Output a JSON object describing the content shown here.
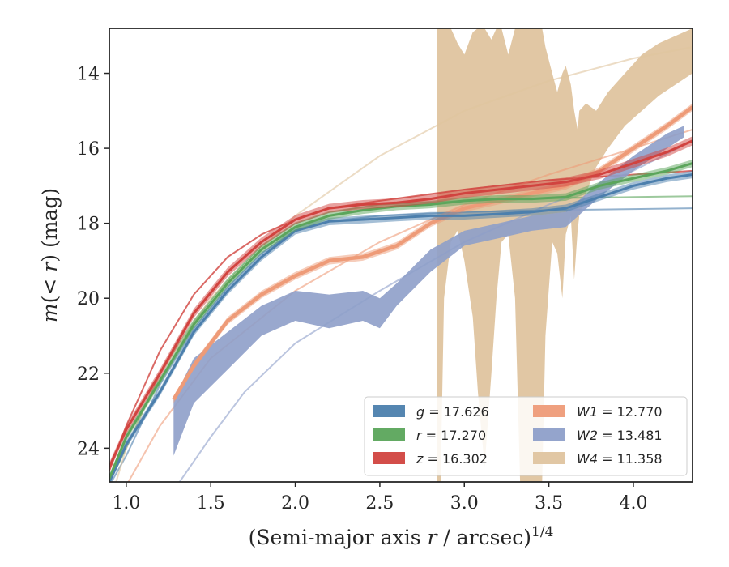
{
  "chart_data": {
    "type": "line",
    "title": "",
    "xlabel": "(Semi-major axis r / arcsec)",
    "xlabel_parts": {
      "pre": "(Semi-major axis ",
      "var": "r",
      "post": " / arcsec)",
      "sup": "1/4"
    },
    "ylabel_parts": {
      "var1": "m",
      "mid": "(< ",
      "var2": "r",
      "post": ") (mag)"
    },
    "xlim": [
      0.9,
      4.35
    ],
    "ylim": [
      24.9,
      12.8
    ],
    "y_inverted": true,
    "grid": false,
    "legend_position": "lower-right",
    "legend_columns": 2,
    "x_ticks": [
      1.0,
      1.5,
      2.0,
      2.5,
      3.0,
      3.5,
      4.0
    ],
    "x_tick_labels": [
      "1.0",
      "1.5",
      "2.0",
      "2.5",
      "3.0",
      "3.5",
      "4.0"
    ],
    "y_ticks": [
      14,
      16,
      18,
      20,
      22,
      24
    ],
    "y_tick_labels": [
      "14",
      "16",
      "18",
      "20",
      "22",
      "24"
    ],
    "series": [
      {
        "key": "g",
        "legend_var": "g",
        "legend_value": "17.626",
        "color": "#4c7fad",
        "data": [
          [
            0.9,
            24.9
          ],
          [
            1.0,
            23.9
          ],
          [
            1.2,
            22.5
          ],
          [
            1.4,
            20.9
          ],
          [
            1.6,
            19.8
          ],
          [
            1.8,
            18.9
          ],
          [
            2.0,
            18.2
          ],
          [
            2.2,
            17.95
          ],
          [
            2.4,
            17.9
          ],
          [
            2.6,
            17.85
          ],
          [
            2.8,
            17.8
          ],
          [
            3.0,
            17.8
          ],
          [
            3.2,
            17.75
          ],
          [
            3.4,
            17.7
          ],
          [
            3.6,
            17.6
          ],
          [
            3.8,
            17.3
          ],
          [
            4.0,
            17.0
          ],
          [
            4.2,
            16.8
          ],
          [
            4.35,
            16.7
          ]
        ],
        "band": 0.1,
        "model": [
          [
            0.9,
            25.0
          ],
          [
            1.0,
            24.2
          ],
          [
            1.2,
            22.3
          ],
          [
            1.4,
            20.8
          ],
          [
            1.6,
            19.7
          ],
          [
            1.8,
            18.8
          ],
          [
            2.0,
            18.2
          ],
          [
            2.2,
            17.95
          ],
          [
            2.5,
            17.8
          ],
          [
            3.0,
            17.7
          ],
          [
            3.5,
            17.65
          ],
          [
            4.0,
            17.62
          ],
          [
            4.35,
            17.6
          ]
        ]
      },
      {
        "key": "r",
        "legend_var": "r",
        "legend_value": "17.270",
        "color": "#5ba55b",
        "data": [
          [
            0.9,
            24.8
          ],
          [
            1.0,
            23.7
          ],
          [
            1.2,
            22.2
          ],
          [
            1.4,
            20.7
          ],
          [
            1.6,
            19.6
          ],
          [
            1.8,
            18.7
          ],
          [
            2.0,
            18.1
          ],
          [
            2.2,
            17.8
          ],
          [
            2.4,
            17.65
          ],
          [
            2.6,
            17.55
          ],
          [
            2.8,
            17.5
          ],
          [
            3.0,
            17.4
          ],
          [
            3.2,
            17.35
          ],
          [
            3.4,
            17.35
          ],
          [
            3.6,
            17.3
          ],
          [
            3.8,
            17.0
          ],
          [
            4.0,
            16.8
          ],
          [
            4.2,
            16.6
          ],
          [
            4.35,
            16.4
          ]
        ],
        "band": 0.1,
        "model": [
          [
            0.9,
            24.9
          ],
          [
            1.0,
            24.0
          ],
          [
            1.2,
            22.0
          ],
          [
            1.4,
            20.6
          ],
          [
            1.6,
            19.5
          ],
          [
            1.8,
            18.6
          ],
          [
            2.0,
            18.0
          ],
          [
            2.2,
            17.7
          ],
          [
            2.5,
            17.5
          ],
          [
            3.0,
            17.4
          ],
          [
            3.5,
            17.33
          ],
          [
            4.0,
            17.3
          ],
          [
            4.35,
            17.28
          ]
        ]
      },
      {
        "key": "z",
        "legend_var": "z",
        "legend_value": "16.302",
        "color": "#d1433f",
        "data": [
          [
            0.9,
            24.5
          ],
          [
            1.0,
            23.5
          ],
          [
            1.2,
            22.0
          ],
          [
            1.4,
            20.4
          ],
          [
            1.6,
            19.3
          ],
          [
            1.8,
            18.5
          ],
          [
            2.0,
            17.9
          ],
          [
            2.2,
            17.6
          ],
          [
            2.4,
            17.5
          ],
          [
            2.6,
            17.45
          ],
          [
            2.8,
            17.35
          ],
          [
            3.0,
            17.2
          ],
          [
            3.2,
            17.1
          ],
          [
            3.4,
            17.0
          ],
          [
            3.6,
            16.9
          ],
          [
            3.8,
            16.7
          ],
          [
            4.0,
            16.4
          ],
          [
            4.2,
            16.1
          ],
          [
            4.35,
            15.8
          ]
        ],
        "band": 0.12,
        "model": [
          [
            0.9,
            24.6
          ],
          [
            1.0,
            23.4
          ],
          [
            1.2,
            21.4
          ],
          [
            1.4,
            19.9
          ],
          [
            1.6,
            18.9
          ],
          [
            1.8,
            18.3
          ],
          [
            2.0,
            17.9
          ],
          [
            2.2,
            17.6
          ],
          [
            2.5,
            17.4
          ],
          [
            3.0,
            17.1
          ],
          [
            3.5,
            16.85
          ],
          [
            4.0,
            16.7
          ],
          [
            4.35,
            16.6
          ]
        ]
      },
      {
        "key": "W1",
        "legend_var": "W1",
        "legend_value": "12.770",
        "color": "#ee9b78",
        "data": [
          [
            1.28,
            22.7
          ],
          [
            1.4,
            21.8
          ],
          [
            1.6,
            20.6
          ],
          [
            1.8,
            19.9
          ],
          [
            2.0,
            19.4
          ],
          [
            2.2,
            19.0
          ],
          [
            2.4,
            18.9
          ],
          [
            2.6,
            18.6
          ],
          [
            2.8,
            18.0
          ],
          [
            3.0,
            17.6
          ],
          [
            3.2,
            17.4
          ],
          [
            3.4,
            17.2
          ],
          [
            3.6,
            17.0
          ],
          [
            3.8,
            16.6
          ],
          [
            4.0,
            16.0
          ],
          [
            4.2,
            15.4
          ],
          [
            4.35,
            14.9
          ]
        ],
        "band": 0.1,
        "model": [
          [
            0.9,
            26.5
          ],
          [
            1.0,
            25.0
          ],
          [
            1.2,
            23.4
          ],
          [
            1.5,
            21.6
          ],
          [
            2.0,
            19.8
          ],
          [
            2.5,
            18.5
          ],
          [
            3.0,
            17.5
          ],
          [
            3.5,
            16.7
          ],
          [
            4.0,
            16.0
          ],
          [
            4.35,
            15.5
          ]
        ]
      },
      {
        "key": "W2",
        "legend_var": "W2",
        "legend_value": "13.481",
        "color": "#8e9fc9",
        "data": [
          [
            1.28,
            23.3
          ],
          [
            1.4,
            22.1
          ],
          [
            1.6,
            21.4
          ],
          [
            1.8,
            20.6
          ],
          [
            2.0,
            20.2
          ],
          [
            2.2,
            20.3
          ],
          [
            2.4,
            20.2
          ],
          [
            2.5,
            20.4
          ],
          [
            2.6,
            19.9
          ],
          [
            2.8,
            19.0
          ],
          [
            3.0,
            18.4
          ],
          [
            3.2,
            18.2
          ],
          [
            3.4,
            18.0
          ],
          [
            3.6,
            17.9
          ],
          [
            3.7,
            17.5
          ],
          [
            3.8,
            17.1
          ],
          [
            4.0,
            16.4
          ],
          [
            4.2,
            15.8
          ],
          [
            4.3,
            15.5
          ]
        ],
        "band_lower": [
          [
            1.28,
            24.2
          ],
          [
            1.4,
            22.8
          ],
          [
            1.6,
            21.9
          ],
          [
            1.8,
            21.0
          ],
          [
            2.0,
            20.6
          ],
          [
            2.2,
            20.8
          ],
          [
            2.4,
            20.6
          ],
          [
            2.5,
            20.8
          ],
          [
            2.6,
            20.2
          ],
          [
            2.8,
            19.3
          ],
          [
            3.0,
            18.6
          ],
          [
            3.2,
            18.4
          ],
          [
            3.4,
            18.2
          ],
          [
            3.6,
            18.1
          ],
          [
            3.7,
            17.7
          ],
          [
            3.8,
            17.3
          ],
          [
            4.0,
            16.6
          ],
          [
            4.2,
            16.0
          ],
          [
            4.3,
            15.7
          ]
        ],
        "band_upper": [
          [
            1.28,
            22.7
          ],
          [
            1.4,
            21.6
          ],
          [
            1.6,
            20.9
          ],
          [
            1.8,
            20.2
          ],
          [
            2.0,
            19.8
          ],
          [
            2.2,
            19.9
          ],
          [
            2.4,
            19.8
          ],
          [
            2.5,
            20.0
          ],
          [
            2.6,
            19.6
          ],
          [
            2.8,
            18.7
          ],
          [
            3.0,
            18.2
          ],
          [
            3.2,
            18.0
          ],
          [
            3.4,
            17.8
          ],
          [
            3.6,
            17.7
          ],
          [
            3.7,
            17.3
          ],
          [
            3.8,
            16.9
          ],
          [
            4.0,
            16.2
          ],
          [
            4.2,
            15.6
          ],
          [
            4.3,
            15.4
          ]
        ],
        "model": [
          [
            1.1,
            27.0
          ],
          [
            1.3,
            25.0
          ],
          [
            1.5,
            23.7
          ],
          [
            1.7,
            22.5
          ],
          [
            2.0,
            21.2
          ],
          [
            2.5,
            19.8
          ],
          [
            3.0,
            18.5
          ],
          [
            3.5,
            17.5
          ],
          [
            4.0,
            16.6
          ],
          [
            4.35,
            15.8
          ]
        ]
      },
      {
        "key": "W4",
        "legend_var": "W4",
        "legend_value": "11.358",
        "color": "#dfc49f",
        "band_lower": [
          [
            2.84,
            24.9
          ],
          [
            2.86,
            24.9
          ],
          [
            2.88,
            20.0
          ],
          [
            2.92,
            18.5
          ],
          [
            2.96,
            18.2
          ],
          [
            3.0,
            19.0
          ],
          [
            3.05,
            20.5
          ],
          [
            3.08,
            22.5
          ],
          [
            3.12,
            24.5
          ],
          [
            3.16,
            22.0
          ],
          [
            3.19,
            20.0
          ],
          [
            3.22,
            18.5
          ],
          [
            3.26,
            18.3
          ],
          [
            3.3,
            20.0
          ],
          [
            3.33,
            24.9
          ],
          [
            3.46,
            24.9
          ],
          [
            3.48,
            21.0
          ],
          [
            3.52,
            18.5
          ],
          [
            3.55,
            18.8
          ],
          [
            3.58,
            20.0
          ],
          [
            3.6,
            18.3
          ],
          [
            3.63,
            17.8
          ],
          [
            3.65,
            19.5
          ],
          [
            3.67,
            18.2
          ],
          [
            3.68,
            17.8
          ],
          [
            3.72,
            17.2
          ],
          [
            3.78,
            16.5
          ],
          [
            3.85,
            16.0
          ],
          [
            3.95,
            15.4
          ],
          [
            4.05,
            15.0
          ],
          [
            4.15,
            14.6
          ],
          [
            4.25,
            14.3
          ],
          [
            4.35,
            14.0
          ]
        ],
        "band_upper": [
          [
            2.84,
            12.8
          ],
          [
            2.86,
            12.8
          ],
          [
            2.88,
            12.8
          ],
          [
            2.92,
            12.8
          ],
          [
            2.96,
            13.2
          ],
          [
            3.0,
            13.5
          ],
          [
            3.05,
            12.9
          ],
          [
            3.08,
            12.8
          ],
          [
            3.12,
            12.8
          ],
          [
            3.16,
            13.1
          ],
          [
            3.19,
            12.8
          ],
          [
            3.22,
            12.8
          ],
          [
            3.26,
            13.5
          ],
          [
            3.3,
            12.8
          ],
          [
            3.33,
            12.8
          ],
          [
            3.46,
            12.8
          ],
          [
            3.48,
            13.3
          ],
          [
            3.52,
            14.0
          ],
          [
            3.55,
            14.5
          ],
          [
            3.58,
            14.0
          ],
          [
            3.6,
            13.8
          ],
          [
            3.63,
            14.3
          ],
          [
            3.65,
            15.0
          ],
          [
            3.67,
            15.5
          ],
          [
            3.68,
            15.0
          ],
          [
            3.72,
            14.8
          ],
          [
            3.78,
            15.0
          ],
          [
            3.85,
            14.5
          ],
          [
            3.95,
            14.0
          ],
          [
            4.05,
            13.5
          ],
          [
            4.15,
            13.2
          ],
          [
            4.25,
            13.0
          ],
          [
            4.35,
            12.8
          ]
        ],
        "model": [
          [
            0.9,
            25.5
          ],
          [
            1.0,
            24.0
          ],
          [
            1.2,
            22.0
          ],
          [
            1.5,
            20.0
          ],
          [
            2.0,
            17.8
          ],
          [
            2.5,
            16.2
          ],
          [
            3.0,
            15.0
          ],
          [
            3.5,
            14.2
          ],
          [
            4.0,
            13.6
          ],
          [
            4.35,
            13.3
          ]
        ]
      }
    ]
  }
}
